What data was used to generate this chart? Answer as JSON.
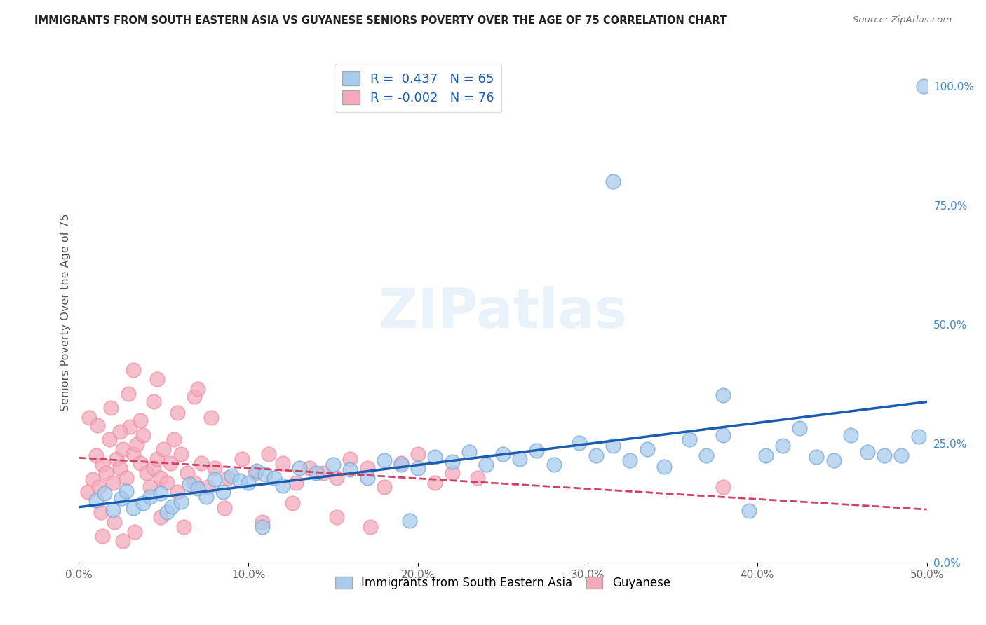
{
  "title": "IMMIGRANTS FROM SOUTH EASTERN ASIA VS GUYANESE SENIORS POVERTY OVER THE AGE OF 75 CORRELATION CHART",
  "source": "Source: ZipAtlas.com",
  "ylabel": "Seniors Poverty Over the Age of 75",
  "blue_R": 0.437,
  "blue_N": 65,
  "pink_R": -0.002,
  "pink_N": 76,
  "xlim": [
    0.0,
    0.5
  ],
  "ylim": [
    0.0,
    1.05
  ],
  "xticks": [
    0.0,
    0.1,
    0.2,
    0.3,
    0.4,
    0.5
  ],
  "yticks": [
    0.0,
    0.25,
    0.5,
    0.75,
    1.0
  ],
  "ytick_labels": [
    "0.0%",
    "25.0%",
    "50.0%",
    "75.0%",
    "100.0%"
  ],
  "xtick_labels": [
    "0.0%",
    "10.0%",
    "20.0%",
    "30.0%",
    "40.0%",
    "50.0%"
  ],
  "blue_fill": "#A8CCEE",
  "pink_fill": "#F4AABC",
  "blue_edge": "#7AAAD8",
  "pink_edge": "#F090A8",
  "blue_line_color": "#1A5CB0",
  "pink_line_color": "#D04060",
  "grid_color": "#CCCCCC",
  "background": "#FFFFFF",
  "blue_scatter_x": [
    0.01,
    0.015,
    0.02,
    0.025,
    0.028,
    0.032,
    0.038,
    0.042,
    0.048,
    0.052,
    0.055,
    0.06,
    0.065,
    0.07,
    0.075,
    0.08,
    0.085,
    0.09,
    0.095,
    0.1,
    0.105,
    0.11,
    0.115,
    0.12,
    0.13,
    0.14,
    0.15,
    0.16,
    0.17,
    0.18,
    0.19,
    0.2,
    0.21,
    0.22,
    0.23,
    0.24,
    0.25,
    0.26,
    0.27,
    0.28,
    0.295,
    0.305,
    0.315,
    0.325,
    0.335,
    0.345,
    0.36,
    0.37,
    0.38,
    0.395,
    0.405,
    0.415,
    0.425,
    0.435,
    0.445,
    0.455,
    0.465,
    0.475,
    0.485,
    0.495,
    0.315,
    0.38,
    0.498,
    0.108,
    0.195
  ],
  "blue_scatter_y": [
    0.13,
    0.145,
    0.11,
    0.135,
    0.15,
    0.115,
    0.125,
    0.138,
    0.145,
    0.105,
    0.118,
    0.128,
    0.165,
    0.155,
    0.138,
    0.175,
    0.148,
    0.182,
    0.172,
    0.168,
    0.192,
    0.185,
    0.178,
    0.162,
    0.198,
    0.188,
    0.205,
    0.195,
    0.178,
    0.215,
    0.205,
    0.198,
    0.222,
    0.212,
    0.232,
    0.205,
    0.228,
    0.218,
    0.235,
    0.205,
    0.252,
    0.225,
    0.245,
    0.215,
    0.238,
    0.202,
    0.258,
    0.225,
    0.268,
    0.108,
    0.225,
    0.245,
    0.282,
    0.222,
    0.215,
    0.268,
    0.232,
    0.225,
    0.225,
    0.265,
    0.8,
    0.352,
    1.0,
    0.075,
    0.088
  ],
  "pink_scatter_x": [
    0.005,
    0.008,
    0.01,
    0.012,
    0.014,
    0.016,
    0.018,
    0.02,
    0.022,
    0.024,
    0.026,
    0.028,
    0.03,
    0.032,
    0.034,
    0.036,
    0.038,
    0.04,
    0.042,
    0.044,
    0.046,
    0.048,
    0.05,
    0.052,
    0.054,
    0.056,
    0.058,
    0.06,
    0.064,
    0.068,
    0.072,
    0.076,
    0.08,
    0.088,
    0.096,
    0.104,
    0.112,
    0.12,
    0.128,
    0.136,
    0.144,
    0.152,
    0.16,
    0.17,
    0.18,
    0.19,
    0.2,
    0.21,
    0.22,
    0.235,
    0.006,
    0.011,
    0.019,
    0.024,
    0.029,
    0.036,
    0.044,
    0.058,
    0.068,
    0.078,
    0.013,
    0.021,
    0.033,
    0.048,
    0.062,
    0.086,
    0.108,
    0.126,
    0.152,
    0.172,
    0.032,
    0.046,
    0.07,
    0.38,
    0.014,
    0.026
  ],
  "pink_scatter_y": [
    0.148,
    0.175,
    0.225,
    0.158,
    0.205,
    0.188,
    0.258,
    0.168,
    0.218,
    0.198,
    0.238,
    0.178,
    0.285,
    0.228,
    0.248,
    0.208,
    0.268,
    0.188,
    0.158,
    0.198,
    0.218,
    0.178,
    0.238,
    0.168,
    0.208,
    0.258,
    0.148,
    0.228,
    0.188,
    0.168,
    0.208,
    0.158,
    0.198,
    0.178,
    0.218,
    0.188,
    0.228,
    0.208,
    0.168,
    0.198,
    0.188,
    0.178,
    0.218,
    0.198,
    0.158,
    0.208,
    0.228,
    0.168,
    0.188,
    0.178,
    0.305,
    0.288,
    0.325,
    0.275,
    0.355,
    0.298,
    0.338,
    0.315,
    0.348,
    0.305,
    0.105,
    0.085,
    0.065,
    0.095,
    0.075,
    0.115,
    0.085,
    0.125,
    0.095,
    0.075,
    0.405,
    0.385,
    0.365,
    0.158,
    0.055,
    0.045
  ]
}
